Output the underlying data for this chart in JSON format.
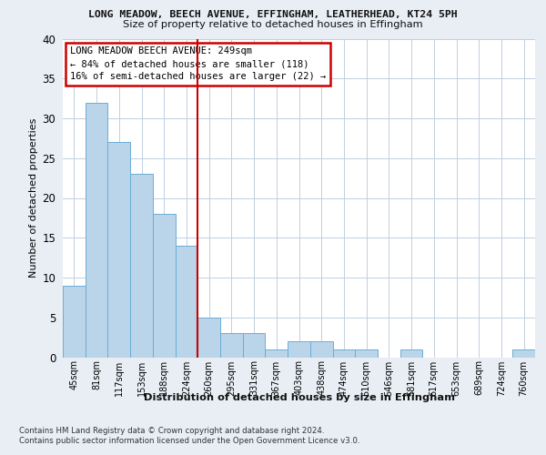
{
  "title1": "LONG MEADOW, BEECH AVENUE, EFFINGHAM, LEATHERHEAD, KT24 5PH",
  "title2": "Size of property relative to detached houses in Effingham",
  "xlabel": "Distribution of detached houses by size in Effingham",
  "ylabel": "Number of detached properties",
  "categories": [
    "45sqm",
    "81sqm",
    "117sqm",
    "153sqm",
    "188sqm",
    "224sqm",
    "260sqm",
    "295sqm",
    "331sqm",
    "367sqm",
    "403sqm",
    "438sqm",
    "474sqm",
    "510sqm",
    "546sqm",
    "581sqm",
    "617sqm",
    "653sqm",
    "689sqm",
    "724sqm",
    "760sqm"
  ],
  "values": [
    9,
    32,
    27,
    23,
    18,
    14,
    5,
    3,
    3,
    1,
    2,
    2,
    1,
    1,
    0,
    1,
    0,
    0,
    0,
    0,
    1
  ],
  "bar_color": "#bad4ea",
  "bar_edge_color": "#6baed6",
  "vline_x_bar_idx": 5.5,
  "vline_color": "#cc0000",
  "annotation_box_text": "LONG MEADOW BEECH AVENUE: 249sqm\n← 84% of detached houses are smaller (118)\n16% of semi-detached houses are larger (22) →",
  "ylim": [
    0,
    40
  ],
  "yticks": [
    0,
    5,
    10,
    15,
    20,
    25,
    30,
    35,
    40
  ],
  "footer1": "Contains HM Land Registry data © Crown copyright and database right 2024.",
  "footer2": "Contains public sector information licensed under the Open Government Licence v3.0.",
  "bg_color": "#e8eef4",
  "plot_bg_color": "#ffffff",
  "grid_color": "#c0cfe0"
}
